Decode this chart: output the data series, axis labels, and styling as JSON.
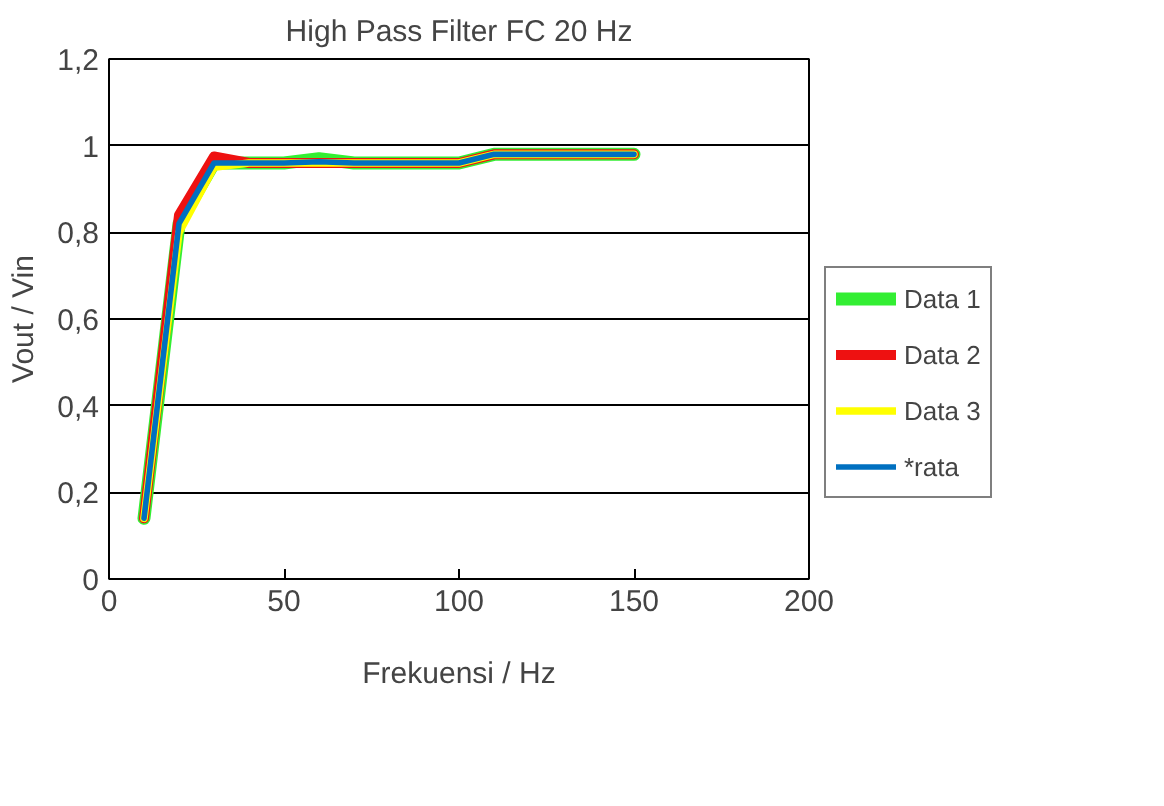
{
  "chart_data": {
    "type": "line",
    "title": "High Pass Filter FC 20 Hz",
    "xlabel": "Frekuensi / Hz",
    "ylabel": "Vout / Vin",
    "xlim": [
      0,
      200
    ],
    "xticks": [
      0,
      50,
      100,
      150,
      200
    ],
    "ylim": [
      0,
      1.2
    ],
    "yticks": [
      {
        "value": 0,
        "label": "0"
      },
      {
        "value": 0.2,
        "label": "0,2"
      },
      {
        "value": 0.4,
        "label": "0,4"
      },
      {
        "value": 0.6,
        "label": "0,6"
      },
      {
        "value": 0.8,
        "label": "0,8"
      },
      {
        "value": 1,
        "label": "1"
      },
      {
        "value": 1.2,
        "label": "1,2"
      }
    ],
    "grid": "y",
    "legend": "right",
    "line_style": "solid",
    "marker": "none",
    "x": [
      10,
      20,
      30,
      40,
      50,
      60,
      70,
      80,
      90,
      100,
      110,
      120,
      130,
      140,
      150
    ],
    "series": [
      {
        "name": "Data 1",
        "color": "#33ee33",
        "values": [
          0.14,
          0.82,
          0.96,
          0.96,
          0.96,
          0.97,
          0.96,
          0.96,
          0.96,
          0.96,
          0.98,
          0.98,
          0.98,
          0.98,
          0.98
        ]
      },
      {
        "name": "Data 2",
        "color": "#ee1111",
        "values": [
          0.14,
          0.84,
          0.975,
          0.96,
          0.96,
          0.96,
          0.96,
          0.96,
          0.96,
          0.96,
          0.98,
          0.98,
          0.98,
          0.98,
          0.98
        ]
      },
      {
        "name": "Data 3",
        "color": "#ffff00",
        "values": [
          0.14,
          0.8,
          0.95,
          0.96,
          0.96,
          0.96,
          0.96,
          0.96,
          0.96,
          0.96,
          0.98,
          0.98,
          0.98,
          0.98,
          0.98
        ]
      },
      {
        "name": "*rata",
        "color": "#0070c0",
        "values": [
          0.14,
          0.82,
          0.96,
          0.96,
          0.96,
          0.963,
          0.96,
          0.96,
          0.96,
          0.96,
          0.98,
          0.98,
          0.98,
          0.98,
          0.98
        ]
      }
    ]
  }
}
